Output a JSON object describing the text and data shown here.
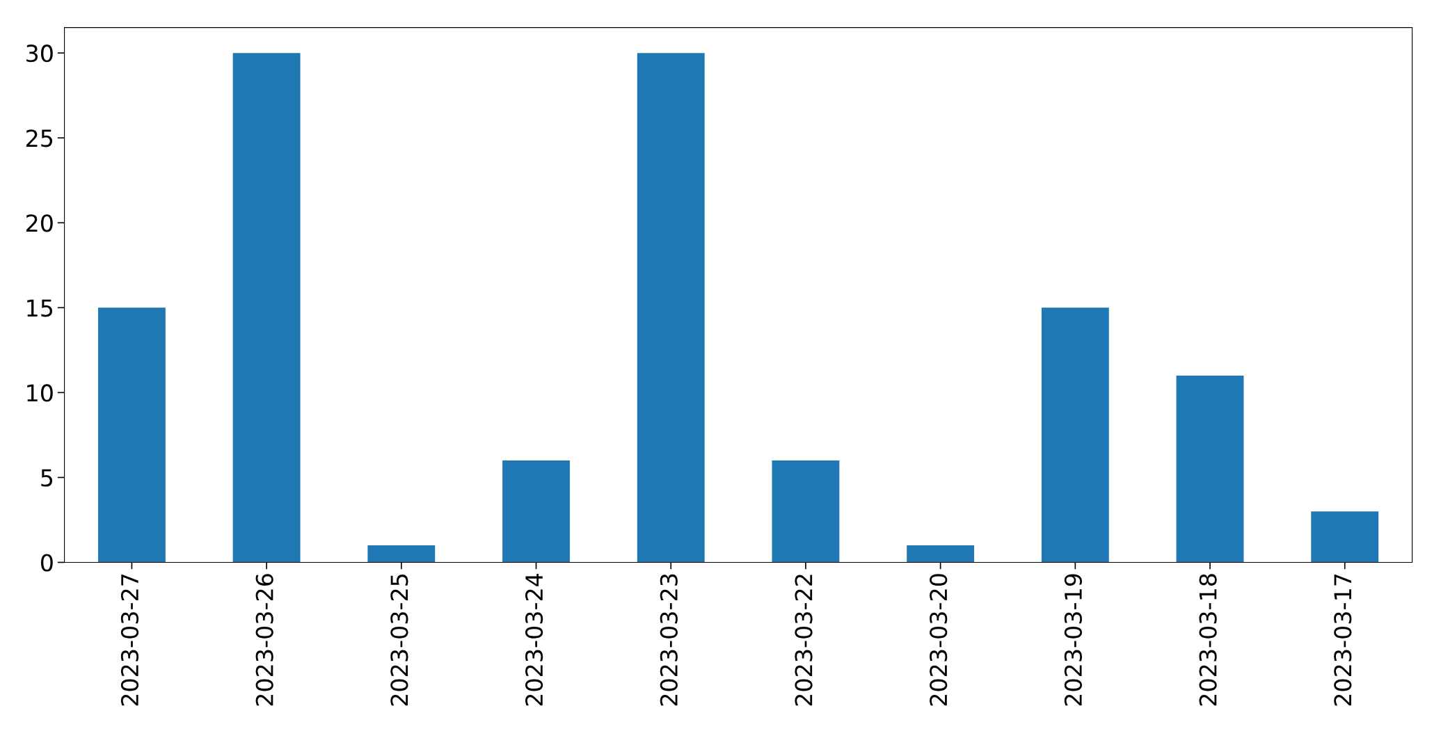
{
  "chart_data": {
    "type": "bar",
    "categories": [
      "2023-03-27",
      "2023-03-26",
      "2023-03-25",
      "2023-03-24",
      "2023-03-23",
      "2023-03-22",
      "2023-03-20",
      "2023-03-19",
      "2023-03-18",
      "2023-03-17"
    ],
    "values": [
      15,
      30,
      1,
      6,
      30,
      6,
      1,
      15,
      11,
      3
    ],
    "color": "#1f77b4",
    "ylim": [
      0,
      31.5
    ],
    "yticks": [
      0,
      5,
      10,
      15,
      20,
      25,
      30
    ],
    "grid": false
  }
}
